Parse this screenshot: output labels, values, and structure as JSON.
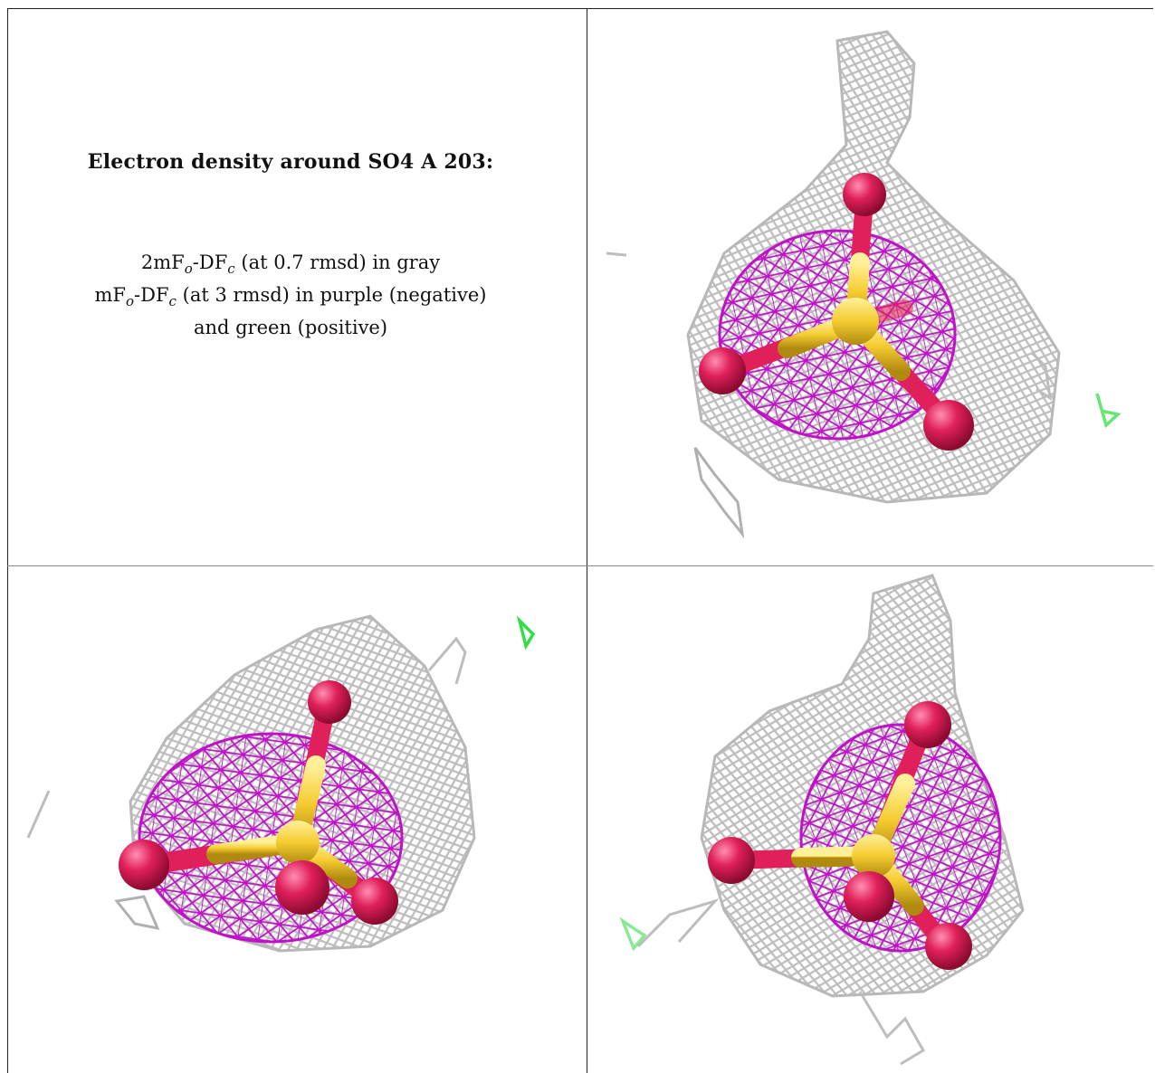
{
  "caption": {
    "title": "Electron density around SO4 A 203:",
    "line1_prefix": "2mF",
    "line1_sub1": "o",
    "line1_mid": "-DF",
    "line1_sub2": "c",
    "line1_suffix": " (at 0.7 rmsd) in gray",
    "line2_prefix": "mF",
    "line2_sub1": "o",
    "line2_mid": "-DF",
    "line2_sub2": "c",
    "line2_suffix": " (at 3 rmsd) in purple (negative)",
    "line3": "and green (positive)"
  },
  "colors": {
    "gray_mesh": "#bdbdbd",
    "purple_mesh": "#c010c8",
    "green_mesh": "#33dd44",
    "oxygen": "#e0205a",
    "sulfur": "#f5cc30"
  },
  "panels": [
    {
      "name": "view-top-right"
    },
    {
      "name": "view-bottom-left"
    },
    {
      "name": "view-bottom-right"
    }
  ]
}
